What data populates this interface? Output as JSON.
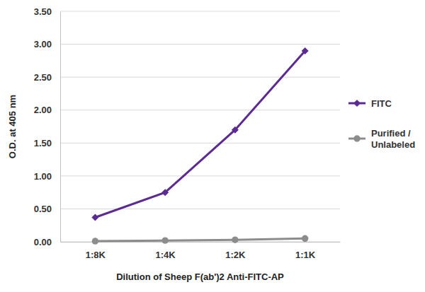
{
  "chart_data": {
    "type": "line",
    "x_label": "Dilution of Sheep F(ab')2 Anti-FITC-AP",
    "y_label": "O.D. at 405 nm",
    "categories": [
      "1:8K",
      "1:4K",
      "1:2K",
      "1:1K"
    ],
    "series": [
      {
        "name": "FITC",
        "color": "#5b2a92",
        "marker": "diamond",
        "line_style": "solid",
        "values": [
          0.37,
          0.75,
          1.7,
          2.9
        ]
      },
      {
        "name": "Purified / Unlabeled",
        "color": "#8c8c8c",
        "marker": "circle",
        "line_style": "solid",
        "values": [
          0.01,
          0.02,
          0.03,
          0.05
        ]
      }
    ],
    "ylim": [
      0,
      3.5
    ],
    "yticks": [
      {
        "value": 0,
        "label": "0.00"
      },
      {
        "value": 0.5,
        "label": "0.50"
      },
      {
        "value": 1,
        "label": "1.00"
      },
      {
        "value": 1.5,
        "label": "1.50"
      },
      {
        "value": 2,
        "label": "2.00"
      },
      {
        "value": 2.5,
        "label": "2.50"
      },
      {
        "value": 3,
        "label": "3.00"
      },
      {
        "value": 3.5,
        "label": "3.50"
      }
    ],
    "grid": true,
    "legend": "right"
  }
}
